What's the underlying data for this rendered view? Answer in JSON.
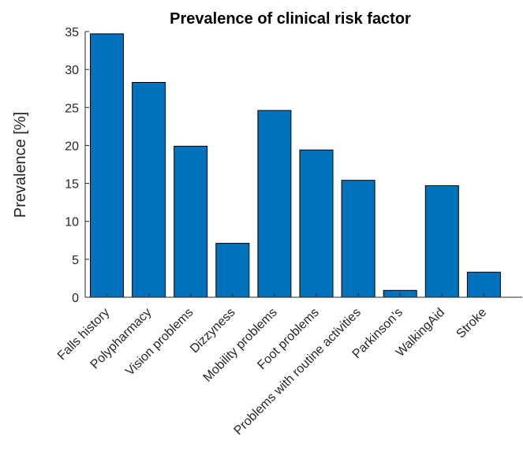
{
  "chart_data": {
    "type": "bar",
    "title": "Prevalence of clinical risk factor",
    "xlabel": "",
    "ylabel": "Prevalence [%]",
    "ylim": [
      0,
      35
    ],
    "yticks": [
      0,
      5,
      10,
      15,
      20,
      25,
      30,
      35
    ],
    "grid": false,
    "bar_color": "#0072BD",
    "categories": [
      "Falls history",
      "Polypharmacy",
      "Vision problems",
      "Dizzyness",
      "Mobility problems",
      "Foot problems",
      "Problems with routine activities",
      "Parkinson’s",
      "WalkingAid",
      "Stroke"
    ],
    "values": [
      34.7,
      28.3,
      19.9,
      7.1,
      24.6,
      19.4,
      15.4,
      0.9,
      14.7,
      3.3
    ]
  }
}
